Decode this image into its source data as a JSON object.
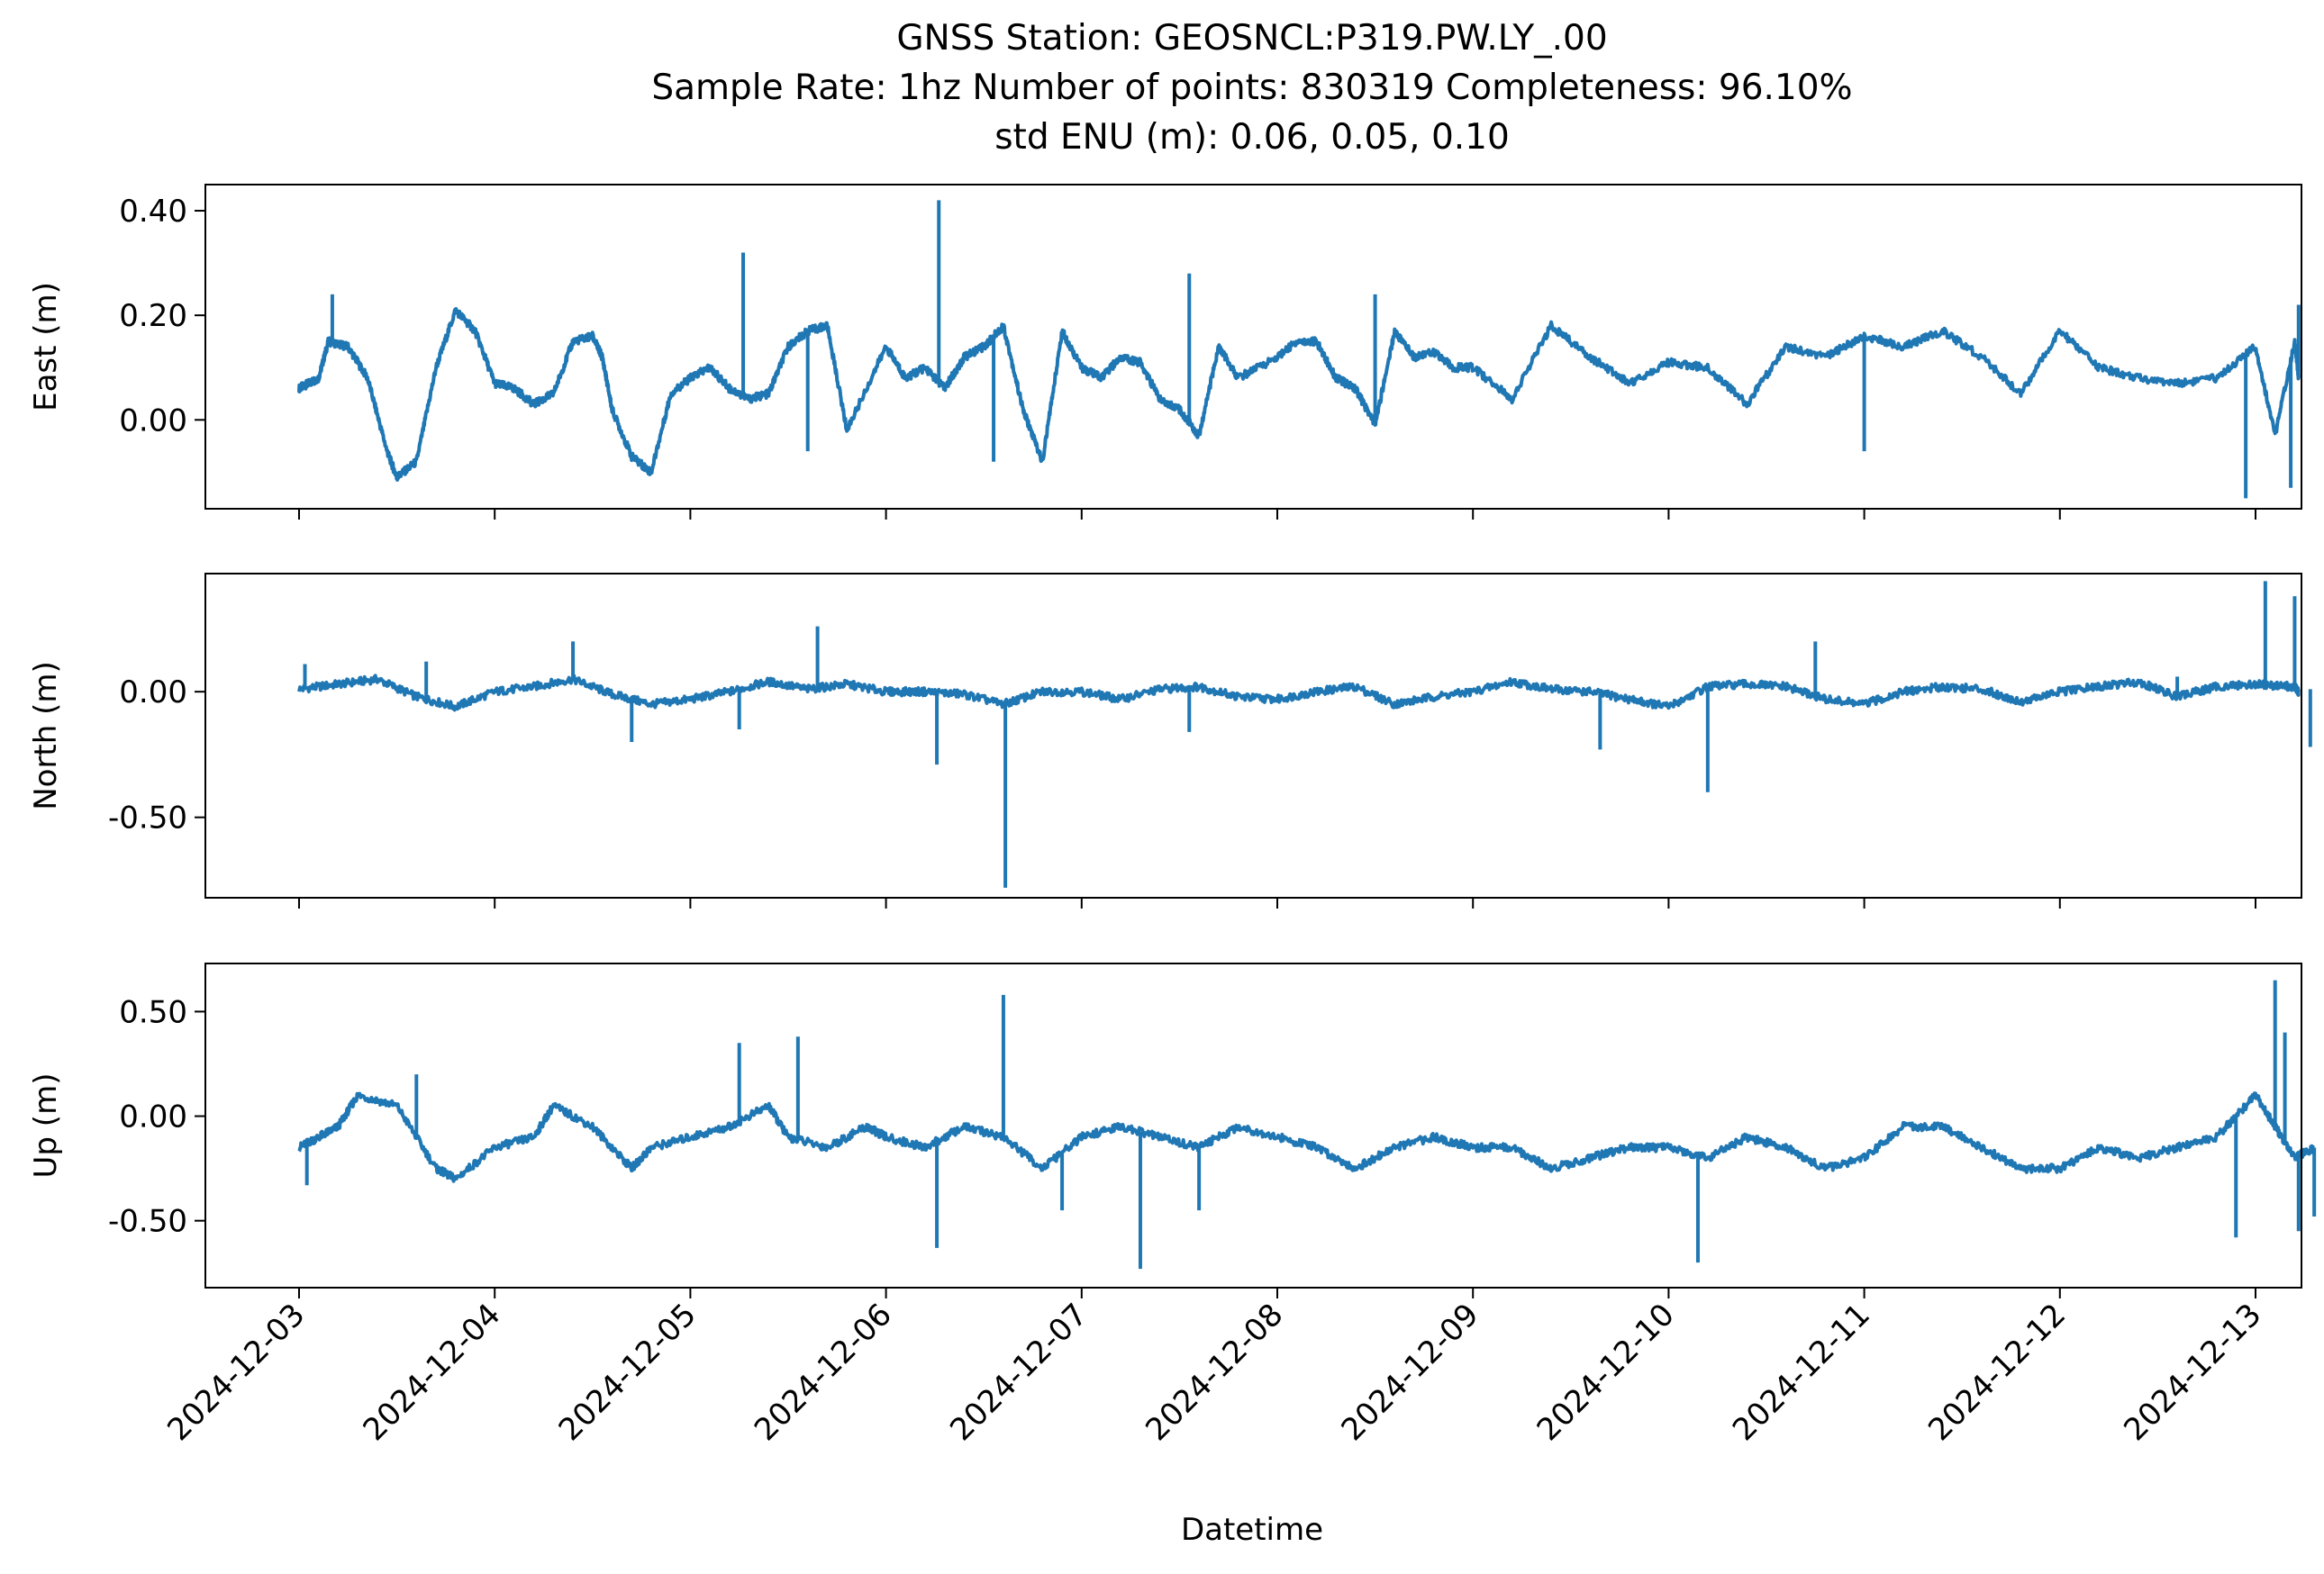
{
  "figure": {
    "title_lines": [
      "GNSS Station: GEOSNCL:P319.PW.LY_.00",
      "Sample Rate: 1hz   Number of points: 830319    Completeness:  96.10%",
      "std ENU (m):  0.06, 0.05, 0.10"
    ],
    "xlabel": "Datetime",
    "x_tick_labels": [
      "2024-12-03",
      "2024-12-04",
      "2024-12-05",
      "2024-12-06",
      "2024-12-07",
      "2024-12-08",
      "2024-12-09",
      "2024-12-10",
      "2024-12-11",
      "2024-12-12",
      "2024-12-13"
    ],
    "series_color": "#1f77b4"
  },
  "chart_data": [
    {
      "type": "line",
      "ylabel": "East (m)",
      "y_ticks": [
        0.0,
        0.2,
        0.4
      ],
      "y_tick_labels": [
        "0.00",
        "0.20",
        "0.40"
      ],
      "ylim": [
        -0.17,
        0.45
      ],
      "xlim_days": [
        -0.48,
        10.25
      ],
      "shared_x": "days after 2024-12-03",
      "x": [
        0,
        0.05,
        0.1,
        0.15,
        0.25,
        0.35,
        0.45,
        0.5,
        0.6,
        0.7,
        0.8,
        0.9,
        1.0,
        1.1,
        1.2,
        1.3,
        1.4,
        1.5,
        1.55,
        1.6,
        1.7,
        1.8,
        1.9,
        2.0,
        2.1,
        2.2,
        2.3,
        2.4,
        2.5,
        2.6,
        2.7,
        2.8,
        3.0,
        3.1,
        3.2,
        3.3,
        3.4,
        3.5,
        3.6,
        3.7,
        3.8,
        3.9,
        4.0,
        4.1,
        4.2,
        4.3,
        4.4,
        4.5,
        4.6,
        4.7,
        4.8,
        5.0,
        5.1,
        5.2,
        5.3,
        5.4,
        5.5,
        5.6,
        5.7,
        5.8,
        5.9,
        6.0,
        6.2,
        6.4,
        6.6,
        6.8,
        7.0,
        7.2,
        7.4,
        7.6,
        7.8,
        8.0,
        8.2,
        8.4,
        8.6,
        8.8,
        9.0,
        9.2,
        9.4,
        9.6,
        9.8,
        10.0,
        10.1,
        10.2,
        10.22
      ],
      "values": [
        0.06,
        0.07,
        0.08,
        0.15,
        0.14,
        0.08,
        -0.06,
        -0.11,
        -0.08,
        0.1,
        0.21,
        0.17,
        0.07,
        0.06,
        0.03,
        0.05,
        0.15,
        0.16,
        0.12,
        0.02,
        -0.07,
        -0.1,
        0.05,
        0.08,
        0.1,
        0.06,
        0.04,
        0.05,
        0.14,
        0.17,
        0.18,
        -0.02,
        0.14,
        0.08,
        0.1,
        0.06,
        0.12,
        0.14,
        0.18,
        0.02,
        -0.08,
        0.17,
        0.1,
        0.08,
        0.12,
        0.11,
        0.04,
        0.02,
        -0.03,
        0.14,
        0.08,
        0.12,
        0.15,
        0.15,
        0.08,
        0.06,
        -0.01,
        0.17,
        0.12,
        0.13,
        0.1,
        0.1,
        0.04,
        0.18,
        0.12,
        0.07,
        0.11,
        0.1,
        0.03,
        0.14,
        0.12,
        0.16,
        0.14,
        0.17,
        0.12,
        0.05,
        0.17,
        0.1,
        0.08,
        0.07,
        0.08,
        0.14,
        -0.03,
        0.15,
        0.08
      ],
      "spikes": [
        [
          0.17,
          0.24
        ],
        [
          2.27,
          0.32
        ],
        [
          2.6,
          -0.06
        ],
        [
          3.27,
          0.42
        ],
        [
          3.55,
          -0.08
        ],
        [
          4.55,
          0.28
        ],
        [
          5.5,
          0.24
        ],
        [
          8.0,
          -0.06
        ],
        [
          9.95,
          -0.15
        ],
        [
          10.18,
          -0.13
        ],
        [
          10.22,
          0.22
        ]
      ]
    },
    {
      "type": "line",
      "ylabel": "North (m)",
      "y_ticks": [
        -0.5,
        0.0
      ],
      "y_tick_labels": [
        "-0.50",
        "0.00"
      ],
      "ylim": [
        -0.82,
        0.47
      ],
      "xlim_days": [
        -0.48,
        10.25
      ],
      "x": [
        0,
        0.2,
        0.4,
        0.6,
        0.8,
        1.0,
        1.2,
        1.4,
        1.6,
        1.8,
        2.0,
        2.2,
        2.4,
        2.6,
        2.8,
        3.0,
        3.2,
        3.4,
        3.6,
        3.8,
        4.0,
        4.2,
        4.4,
        4.6,
        4.8,
        5.0,
        5.2,
        5.4,
        5.6,
        5.8,
        6.0,
        6.2,
        6.4,
        6.6,
        6.8,
        7.0,
        7.2,
        7.4,
        7.6,
        7.8,
        8.0,
        8.2,
        8.4,
        8.6,
        8.8,
        9.0,
        9.2,
        9.4,
        9.6,
        9.8,
        10.0,
        10.2,
        10.22
      ],
      "values": [
        0.01,
        0.03,
        0.05,
        -0.02,
        -0.06,
        0.0,
        0.02,
        0.05,
        -0.01,
        -0.05,
        -0.03,
        0.0,
        0.04,
        0.01,
        0.03,
        0.0,
        0.0,
        -0.01,
        -0.05,
        0.0,
        0.0,
        -0.03,
        0.01,
        0.02,
        -0.02,
        -0.03,
        0.0,
        0.02,
        -0.05,
        -0.02,
        0.0,
        0.04,
        0.01,
        0.0,
        -0.03,
        -0.06,
        0.02,
        0.03,
        0.02,
        -0.03,
        -0.05,
        0.0,
        0.02,
        0.01,
        -0.04,
        0.0,
        0.02,
        0.04,
        -0.02,
        0.02,
        0.03,
        0.02,
        0.0
      ],
      "spikes": [
        [
          0.03,
          0.11
        ],
        [
          0.65,
          0.12
        ],
        [
          1.4,
          0.2
        ],
        [
          1.7,
          -0.2
        ],
        [
          2.25,
          -0.15
        ],
        [
          2.65,
          0.26
        ],
        [
          3.26,
          -0.29
        ],
        [
          3.61,
          -0.78
        ],
        [
          4.55,
          -0.16
        ],
        [
          6.65,
          -0.23
        ],
        [
          7.2,
          -0.4
        ],
        [
          7.75,
          0.2
        ],
        [
          9.6,
          0.06
        ],
        [
          10.05,
          0.44
        ],
        [
          10.2,
          0.38
        ],
        [
          10.28,
          -0.22
        ]
      ]
    },
    {
      "type": "line",
      "ylabel": "Up (m)",
      "y_ticks": [
        -0.5,
        0.0,
        0.5
      ],
      "y_tick_labels": [
        "-0.50",
        "0.00",
        "0.50"
      ],
      "ylim": [
        -0.82,
        0.73
      ],
      "xlim_days": [
        -0.48,
        10.25
      ],
      "x": [
        0,
        0.1,
        0.2,
        0.3,
        0.5,
        0.7,
        0.8,
        1.0,
        1.2,
        1.3,
        1.5,
        1.7,
        1.8,
        2.0,
        2.2,
        2.4,
        2.5,
        2.7,
        2.9,
        3.0,
        3.2,
        3.4,
        3.6,
        3.8,
        4.0,
        4.2,
        4.4,
        4.6,
        4.8,
        5.0,
        5.2,
        5.4,
        5.6,
        5.8,
        6.0,
        6.2,
        6.4,
        6.6,
        6.8,
        7.0,
        7.2,
        7.4,
        7.6,
        7.8,
        8.0,
        8.2,
        8.4,
        8.6,
        8.8,
        9.0,
        9.2,
        9.4,
        9.6,
        9.8,
        10.0,
        10.1,
        10.2,
        10.3
      ],
      "values": [
        -0.15,
        -0.1,
        -0.05,
        0.1,
        0.05,
        -0.25,
        -0.3,
        -0.15,
        -0.1,
        0.05,
        -0.05,
        -0.25,
        -0.15,
        -0.1,
        -0.05,
        0.05,
        -0.1,
        -0.15,
        -0.05,
        -0.1,
        -0.15,
        -0.05,
        -0.1,
        -0.25,
        -0.1,
        -0.05,
        -0.1,
        -0.15,
        -0.05,
        -0.1,
        -0.15,
        -0.25,
        -0.15,
        -0.1,
        -0.15,
        -0.15,
        -0.25,
        -0.2,
        -0.15,
        -0.15,
        -0.2,
        -0.1,
        -0.15,
        -0.25,
        -0.2,
        -0.05,
        -0.05,
        -0.15,
        -0.25,
        -0.25,
        -0.15,
        -0.2,
        -0.15,
        -0.1,
        0.1,
        -0.05,
        -0.2,
        -0.15
      ],
      "spikes": [
        [
          0.04,
          -0.33
        ],
        [
          0.6,
          0.2
        ],
        [
          2.25,
          0.35
        ],
        [
          2.55,
          0.38
        ],
        [
          3.26,
          -0.63
        ],
        [
          3.6,
          0.58
        ],
        [
          3.9,
          -0.45
        ],
        [
          4.3,
          -0.73
        ],
        [
          4.6,
          -0.45
        ],
        [
          7.15,
          -0.7
        ],
        [
          9.9,
          -0.58
        ],
        [
          10.1,
          0.65
        ],
        [
          10.15,
          0.4
        ],
        [
          10.22,
          -0.55
        ],
        [
          10.3,
          -0.48
        ]
      ]
    }
  ]
}
